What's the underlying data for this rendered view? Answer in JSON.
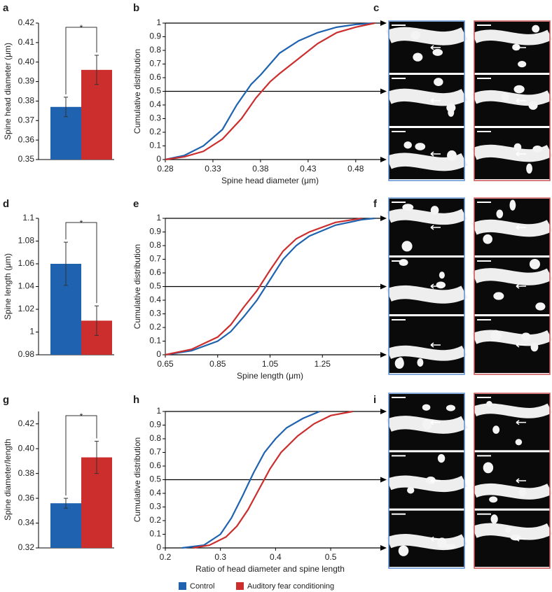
{
  "panel_labels": [
    "a",
    "b",
    "c",
    "d",
    "e",
    "f",
    "g",
    "h",
    "i"
  ],
  "chart_data": [
    {
      "type": "bar",
      "ylabel": "Spine head diameter (μm)",
      "annotation": "*",
      "ylim": [
        0.35,
        0.42
      ],
      "yticks": [
        0.35,
        0.36,
        0.37,
        0.38,
        0.39,
        {
          "value": 0.4,
          "label": "0.40"
        },
        0.41,
        0.42
      ],
      "series": [
        {
          "name": "Control",
          "color": "#1f63b0",
          "values": [
            0.377
          ],
          "errors": [
            0.005
          ]
        },
        {
          "name": "Auditory fear conditioning",
          "color": "#cc2e2e",
          "values": [
            0.396
          ],
          "errors": [
            0.0075
          ]
        }
      ]
    },
    {
      "type": "line",
      "ylabel": "Cumulative distribution",
      "xlabel": "Spine head diameter (μm)",
      "xlim": [
        0.28,
        0.5
      ],
      "xticks": [
        0.28,
        0.33,
        0.38,
        0.43,
        0.48
      ],
      "ylim": [
        0,
        1
      ],
      "yticks": [
        0,
        0.1,
        0.2,
        0.3,
        0.4,
        0.5,
        0.6,
        0.7,
        0.8,
        0.9,
        1
      ],
      "series": [
        {
          "color": "#1f63b0",
          "x": [
            0.28,
            0.3,
            0.32,
            0.34,
            0.355,
            0.37,
            0.38,
            0.39,
            0.4,
            0.42,
            0.44,
            0.46,
            0.48,
            0.5
          ],
          "values": [
            0,
            0.03,
            0.1,
            0.22,
            0.4,
            0.55,
            0.62,
            0.7,
            0.78,
            0.87,
            0.93,
            0.97,
            0.99,
            1
          ]
        },
        {
          "color": "#cc2e2e",
          "x": [
            0.28,
            0.3,
            0.32,
            0.34,
            0.36,
            0.375,
            0.39,
            0.4,
            0.42,
            0.44,
            0.46,
            0.48,
            0.5
          ],
          "values": [
            0,
            0.02,
            0.06,
            0.15,
            0.3,
            0.45,
            0.57,
            0.63,
            0.74,
            0.85,
            0.93,
            0.97,
            1
          ]
        }
      ]
    },
    {
      "type": "bar",
      "ylabel": "Spine length (μm)",
      "annotation": "*",
      "ylim": [
        0.98,
        1.1
      ],
      "yticks": [
        0.98,
        1,
        1.02,
        1.04,
        1.06,
        1.08,
        1.1
      ],
      "series": [
        {
          "color": "#1f63b0",
          "values": [
            1.06
          ],
          "errors": [
            0.019
          ]
        },
        {
          "color": "#cc2e2e",
          "values": [
            1.01
          ],
          "errors": [
            0.013
          ]
        }
      ]
    },
    {
      "type": "line",
      "ylabel": "Cumulative distribution",
      "xlabel": "Spine length (μm)",
      "xlim": [
        0.65,
        1.45
      ],
      "xticks": [
        0.65,
        0.85,
        1.05,
        1.25
      ],
      "ylim": [
        0,
        1
      ],
      "yticks": [
        0,
        0.1,
        0.2,
        0.3,
        0.4,
        0.5,
        0.6,
        0.7,
        0.8,
        0.9,
        1
      ],
      "series": [
        {
          "color": "#1f63b0",
          "x": [
            0.65,
            0.75,
            0.85,
            0.9,
            0.95,
            1.0,
            1.05,
            1.1,
            1.15,
            1.2,
            1.3,
            1.4,
            1.45
          ],
          "values": [
            0,
            0.03,
            0.1,
            0.17,
            0.28,
            0.4,
            0.55,
            0.7,
            0.8,
            0.87,
            0.95,
            0.99,
            1
          ]
        },
        {
          "color": "#cc2e2e",
          "x": [
            0.65,
            0.75,
            0.85,
            0.9,
            0.95,
            1.0,
            1.05,
            1.1,
            1.15,
            1.2,
            1.3,
            1.4
          ],
          "values": [
            0,
            0.04,
            0.13,
            0.22,
            0.35,
            0.47,
            0.62,
            0.76,
            0.85,
            0.9,
            0.97,
            1
          ]
        }
      ]
    },
    {
      "type": "bar",
      "ylabel": "Spine diameter/length",
      "annotation": "*",
      "ylim": [
        0.32,
        0.43
      ],
      "yticks": [
        0.32,
        0.34,
        0.36,
        0.38,
        {
          "value": 0.4,
          "label": "0.40"
        },
        0.42
      ],
      "series": [
        {
          "color": "#1f63b0",
          "values": [
            0.356
          ],
          "errors": [
            0.004
          ]
        },
        {
          "color": "#cc2e2e",
          "values": [
            0.393
          ],
          "errors": [
            0.013
          ]
        }
      ]
    },
    {
      "type": "line",
      "ylabel": "Cumulative distribution",
      "xlabel": "Ratio of head diameter and spine length",
      "xlim": [
        0.2,
        0.58
      ],
      "xticks": [
        0.2,
        0.3,
        0.4,
        0.5
      ],
      "ylim": [
        0,
        1
      ],
      "yticks": [
        0,
        0.1,
        0.2,
        0.3,
        0.4,
        0.5,
        0.6,
        0.7,
        0.8,
        0.9,
        1
      ],
      "series": [
        {
          "color": "#1f63b0",
          "x": [
            0.23,
            0.27,
            0.3,
            0.32,
            0.34,
            0.36,
            0.38,
            0.4,
            0.42,
            0.45,
            0.48
          ],
          "values": [
            0,
            0.02,
            0.1,
            0.22,
            0.38,
            0.55,
            0.7,
            0.8,
            0.88,
            0.95,
            1
          ]
        },
        {
          "color": "#cc2e2e",
          "x": [
            0.25,
            0.28,
            0.31,
            0.33,
            0.35,
            0.37,
            0.39,
            0.41,
            0.44,
            0.47,
            0.5,
            0.54
          ],
          "values": [
            0,
            0.02,
            0.08,
            0.16,
            0.28,
            0.43,
            0.58,
            0.7,
            0.82,
            0.91,
            0.97,
            1
          ]
        }
      ]
    }
  ]
}
